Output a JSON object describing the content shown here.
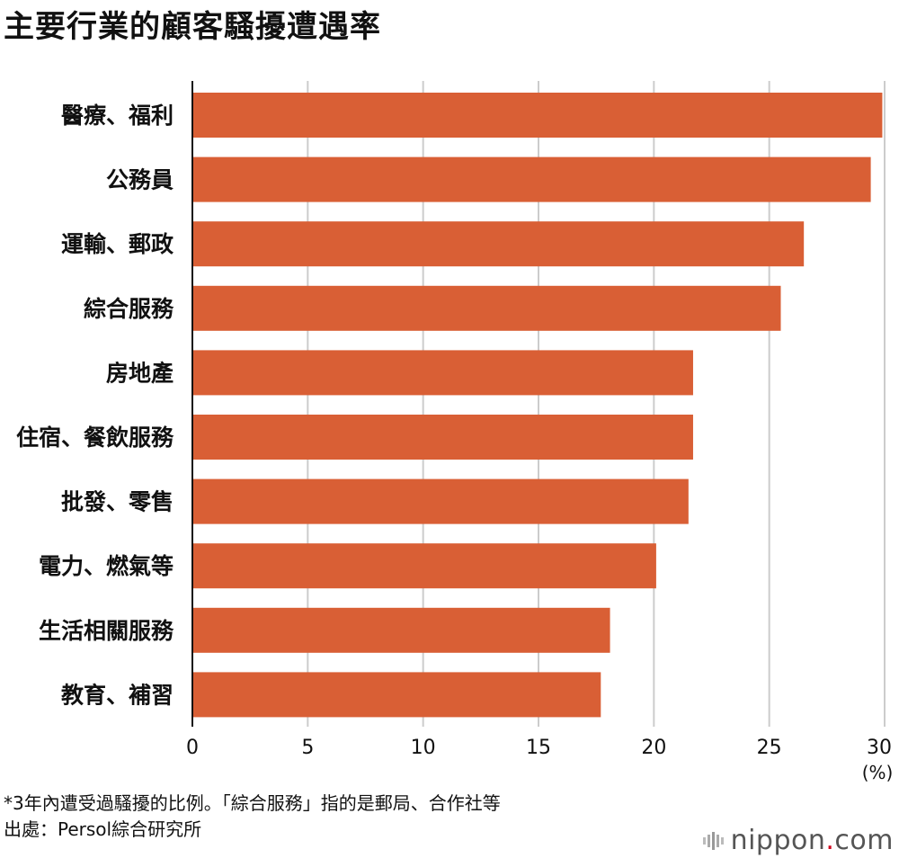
{
  "title": "主要行業的顧客騷擾遭遇率",
  "chart_data": {
    "type": "bar",
    "orientation": "horizontal",
    "title": "主要行業的顧客騷擾遭遇率",
    "categories": [
      "醫療、福利",
      "公務員",
      "運輸、郵政",
      "綜合服務",
      "房地產",
      "住宿、餐飲服務",
      "批發、零售",
      "電力、燃氣等",
      "生活相關服務",
      "教育、補習"
    ],
    "values": [
      29.9,
      29.4,
      26.5,
      25.5,
      21.7,
      21.7,
      21.5,
      20.1,
      18.1,
      17.7
    ],
    "xlim": [
      0,
      30
    ],
    "xticks": [
      0,
      5,
      10,
      15,
      20,
      25,
      30
    ],
    "xunit": "(%)",
    "grid": true,
    "bar_color": "#d95f35",
    "grid_color": "#cccccc"
  },
  "footnote": "*3年內遭受過騷擾的比例。「綜合服務」指的是郵局、合作社等",
  "source": "出處：Persol綜合研究所",
  "logo": {
    "name": "nippon",
    "dot": ".",
    "suffix": "com",
    "icon": "nippon-bars-icon"
  }
}
